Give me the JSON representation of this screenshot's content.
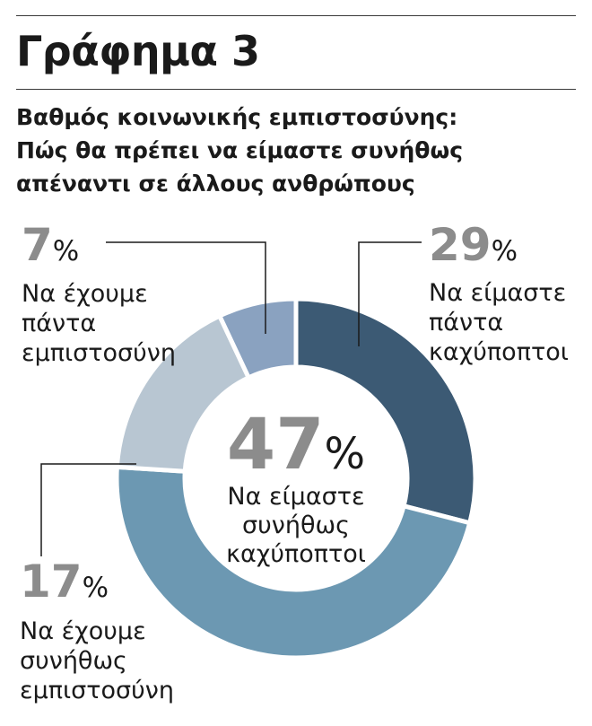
{
  "header": {
    "title": "Γράφημα 3",
    "subtitle_lines": [
      "Βαθμός κοινωνικής εμπιστοσύνης:",
      "Πώς θα πρέπει να είμαστε συνήθως",
      "απέναντι σε άλλους ανθρώπους"
    ]
  },
  "chart_data": {
    "type": "pie",
    "variant": "donut",
    "title": "Γράφημα 3",
    "subtitle": "Βαθμός κοινωνικής εμπιστοσύνης: Πώς θα πρέπει να είμαστε συνήθως απέναντι σε άλλους ανθρώπους",
    "unit": "%",
    "slices": [
      {
        "label": "Να είμαστε πάντα καχύποπτοι",
        "label_lines": [
          "Να είμαστε",
          "πάντα",
          "καχύποπτοι"
        ],
        "value": 29,
        "color": "#3c5a74"
      },
      {
        "label": "Να είμαστε συνήθως καχύποπτοι",
        "label_lines": [
          "Να είμαστε",
          "συνήθως",
          "καχύποπτοι"
        ],
        "value": 47,
        "color": "#6c98b2"
      },
      {
        "label": "Να έχουμε συνήθως εμπιστοσύνη",
        "label_lines": [
          "Να έχουμε",
          "συνήθως",
          "εμπιστοσύνη"
        ],
        "value": 17,
        "color": "#b8c6d2"
      },
      {
        "label": "Να έχουμε πάντα εμπιστοσύνη",
        "label_lines": [
          "Να έχουμε",
          "πάντα",
          "εμπιστοσύνη"
        ],
        "value": 7,
        "color": "#8aa2c0"
      }
    ],
    "legend": "callout labels"
  }
}
